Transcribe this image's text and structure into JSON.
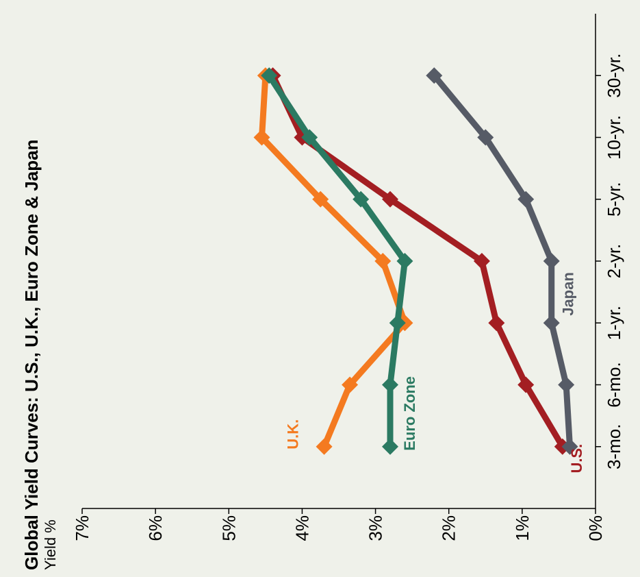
{
  "chart_data": {
    "type": "line",
    "title": "Global Yield Curves: U.S., U.K., Euro Zone & Japan",
    "ylabel": "Yield %",
    "xlabel": "",
    "categories": [
      "3-mo.",
      "6-mo.",
      "1-yr.",
      "2-yr.",
      "5-yr.",
      "10-yr.",
      "30-yr."
    ],
    "y_ticks": [
      "0%",
      "1%",
      "2%",
      "3%",
      "4%",
      "5%",
      "6%",
      "7%"
    ],
    "ylim": [
      0,
      7
    ],
    "grid": false,
    "orientation": "rotated 90° counter-clockwise",
    "series": [
      {
        "name": "U.S.",
        "color": "#a31e22",
        "values": [
          0.45,
          0.95,
          1.35,
          1.55,
          2.8,
          4.0,
          4.4
        ]
      },
      {
        "name": "U.K.",
        "color": "#f47a20",
        "values": [
          3.7,
          3.35,
          2.6,
          2.9,
          3.75,
          4.55,
          4.5
        ]
      },
      {
        "name": "Euro Zone",
        "color": "#2b7a62",
        "values": [
          2.8,
          2.8,
          2.7,
          2.6,
          3.2,
          3.9,
          4.45
        ]
      },
      {
        "name": "Japan",
        "color": "#565b66",
        "values": [
          0.35,
          0.4,
          0.6,
          0.6,
          0.95,
          1.5,
          2.2
        ]
      }
    ]
  }
}
